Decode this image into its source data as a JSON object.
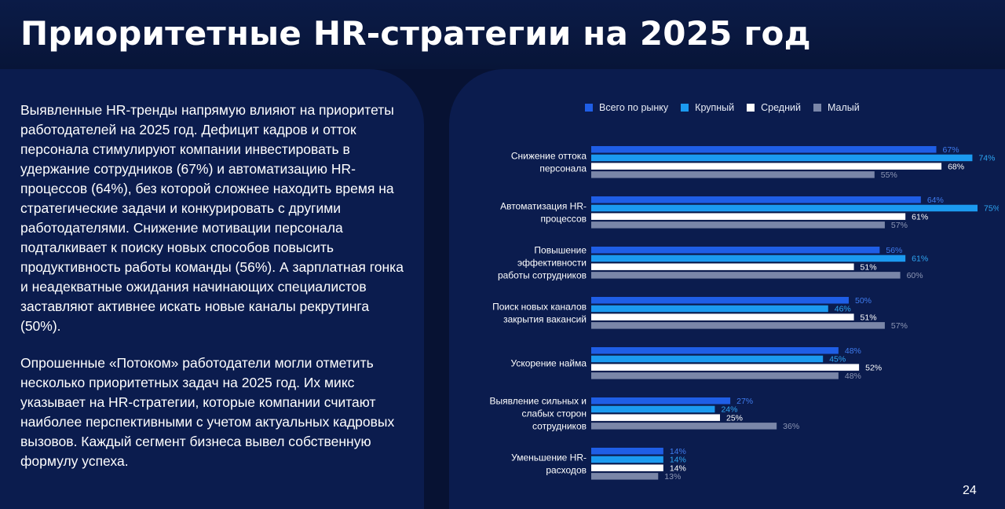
{
  "title": "Приоритетные HR-стратегии на 2025 год",
  "paragraphs": [
    "Выявленные HR-тренды напрямую влияют на приоритеты работодателей на 2025 год. Дефицит кадров и отток персонала стимулируют компании инвестировать в удержание сотрудников (67%) и автоматизацию HR-процессов (64%), без которой сложнее находить время на стратегические задачи и конкурировать с другими работодателями. Снижение мотивации персонала подталкивает к поиску новых способов повысить продуктивность работы команды (56%). А зарплатная гонка и неадекватные ожидания начинающих специалистов заставляют активнее искать новые каналы рекрутинга (50%).",
    "Опрошенные «Потоком» работодатели могли отметить несколько приоритетных задач на 2025 год. Их микс указывает на HR-стратегии, которые компании считают наиболее перспективными с учетом актуальных кадровых вызовов. Каждый сегмент бизнеса вывел собственную формулу успеха."
  ],
  "page_number": "24",
  "chart_data": {
    "type": "bar",
    "orientation": "horizontal",
    "legend_position": "top",
    "value_suffix": "%",
    "xlim": [
      0,
      100
    ],
    "categories": [
      [
        "Снижение оттока",
        "персонала"
      ],
      [
        "Автоматизация HR-",
        "процессов"
      ],
      [
        "Повышение",
        "эффективности",
        "работы сотрудников"
      ],
      [
        "Поиск новых каналов",
        "закрытия вакансий"
      ],
      [
        "Ускорение найма"
      ],
      [
        "Выявление сильных и",
        "слабых сторон",
        "сотрудников"
      ],
      [
        "Уменьшение HR-",
        "расходов"
      ]
    ],
    "series": [
      {
        "name": "Всего по рынку",
        "color": "#1f5ee6",
        "label_color": "#3f7cf0",
        "values": [
          67,
          64,
          56,
          50,
          48,
          27,
          14
        ]
      },
      {
        "name": "Крупный",
        "color": "#1b9af0",
        "label_color": "#2ea7f5",
        "values": [
          74,
          75,
          61,
          46,
          45,
          24,
          14
        ]
      },
      {
        "name": "Средний",
        "color": "#ffffff",
        "label_color": "#ffffff",
        "values": [
          68,
          61,
          51,
          51,
          52,
          25,
          14
        ]
      },
      {
        "name": "Малый",
        "color": "#7a86a8",
        "label_color": "#8d97b5",
        "values": [
          55,
          57,
          60,
          57,
          48,
          36,
          13
        ]
      }
    ]
  }
}
